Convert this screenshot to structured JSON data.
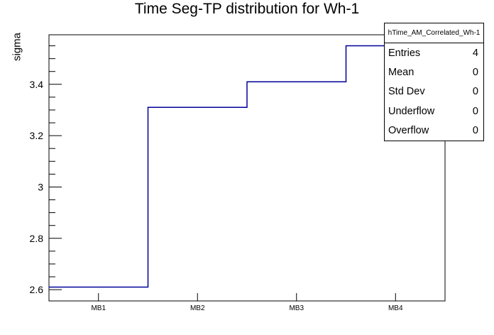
{
  "canvas": {
    "background": "#ffffff"
  },
  "chart": {
    "title": "Time Seg-TP distribution for Wh-1",
    "ylabel": "sigma"
  },
  "stats_box": {
    "title": "hTime_AM_Correlated_Wh-1",
    "rows": [
      {
        "label": "Entries",
        "value": "4"
      },
      {
        "label": "Mean",
        "value": "0"
      },
      {
        "label": "Std Dev",
        "value": "0"
      },
      {
        "label": "Underflow",
        "value": "0"
      },
      {
        "label": "Overflow",
        "value": "0"
      }
    ]
  },
  "chart_data": {
    "type": "line",
    "style": "step-histogram",
    "title": "Time Seg-TP distribution for Wh-1",
    "xlabel": "",
    "ylabel": "sigma",
    "categories": [
      "MB1",
      "MB2",
      "MB3",
      "MB4"
    ],
    "values": [
      2.61,
      3.31,
      3.41,
      3.55
    ],
    "ylim": [
      2.556,
      3.593
    ],
    "y_major_ticks": [
      2.6,
      2.8,
      3.0,
      3.2,
      3.4
    ],
    "y_tick_labels": [
      "2.6",
      "2.8",
      "3",
      "3.2",
      "3.4"
    ],
    "y_minor_tick_step": 0.05,
    "grid": false,
    "legend_position": "none",
    "line_color": "#000099",
    "frame_color": "#000000"
  }
}
